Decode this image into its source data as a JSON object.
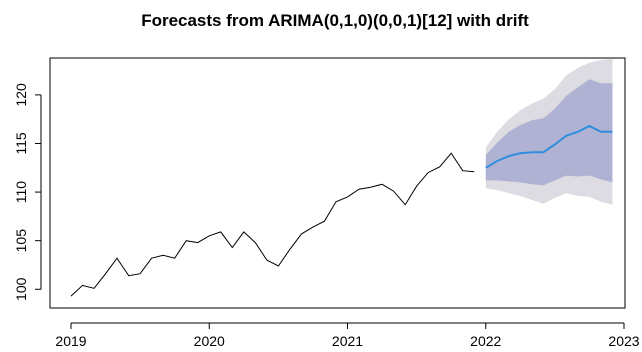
{
  "chart_data": {
    "type": "line",
    "title": "Forecasts from ARIMA(0,1,0)(0,0,1)[12] with drift",
    "xlabel": "",
    "ylabel": "",
    "xlim": [
      2019,
      2023
    ],
    "ylim": [
      99,
      124
    ],
    "x_ticks": [
      "2019",
      "2020",
      "2021",
      "2022",
      "2023"
    ],
    "y_ticks": [
      "100",
      "105",
      "110",
      "115",
      "120"
    ],
    "grid": false,
    "legend": "none",
    "colors": {
      "history": "#000000",
      "forecast": "#2f8fdf",
      "band80": "#b0b2d4",
      "band95": "#dcdce2"
    },
    "history": {
      "x": [
        2019.0,
        2019.083,
        2019.167,
        2019.25,
        2019.333,
        2019.417,
        2019.5,
        2019.583,
        2019.667,
        2019.75,
        2019.833,
        2019.917,
        2020.0,
        2020.083,
        2020.167,
        2020.25,
        2020.333,
        2020.417,
        2020.5,
        2020.583,
        2020.667,
        2020.75,
        2020.833,
        2020.917,
        2021.0,
        2021.083,
        2021.167,
        2021.25,
        2021.333,
        2021.417,
        2021.5,
        2021.583,
        2021.667,
        2021.75,
        2021.833,
        2021.917
      ],
      "y": [
        99.3,
        100.4,
        100.1,
        101.6,
        103.2,
        101.4,
        101.6,
        103.2,
        103.5,
        103.2,
        105.0,
        104.8,
        105.5,
        105.9,
        104.3,
        105.9,
        104.8,
        103.0,
        102.4,
        104.1,
        105.7,
        106.4,
        107.0,
        109.0,
        109.5,
        110.3,
        110.5,
        110.8,
        110.1,
        108.7,
        110.6,
        112.0,
        112.6,
        114.0,
        112.2,
        112.1
      ]
    },
    "forecast": {
      "x": [
        2022.0,
        2022.083,
        2022.167,
        2022.25,
        2022.333,
        2022.417,
        2022.5,
        2022.583,
        2022.667,
        2022.75,
        2022.833,
        2022.917
      ],
      "mean": [
        112.5,
        113.2,
        113.7,
        114.0,
        114.1,
        114.1,
        114.9,
        115.8,
        116.2,
        116.8,
        116.2,
        116.2
      ],
      "lo80": [
        111.2,
        111.2,
        111.1,
        111.0,
        110.8,
        110.7,
        111.2,
        111.7,
        111.6,
        111.7,
        111.3,
        111.0
      ],
      "hi80": [
        113.8,
        115.1,
        116.2,
        116.9,
        117.4,
        117.6,
        118.6,
        119.9,
        120.8,
        121.6,
        121.2,
        121.2
      ],
      "lo95": [
        110.4,
        110.2,
        109.9,
        109.6,
        109.2,
        108.8,
        109.4,
        109.9,
        109.6,
        109.5,
        109.0,
        108.7
      ],
      "hi95": [
        114.6,
        116.2,
        117.5,
        118.4,
        119.1,
        119.6,
        120.6,
        122.0,
        122.8,
        123.3,
        123.6,
        123.7
      ]
    }
  }
}
